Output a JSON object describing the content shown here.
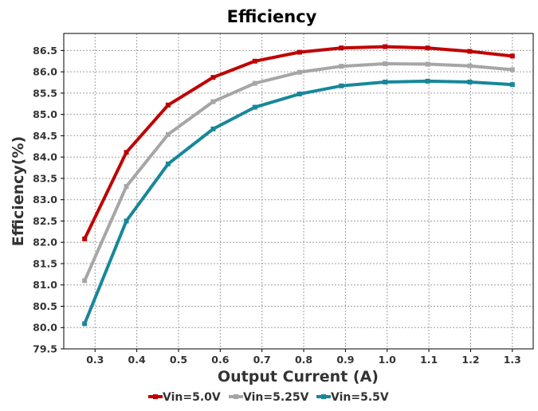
{
  "chart_data": {
    "type": "line",
    "title": "Efficiency",
    "xlabel": "Output Current (A)",
    "ylabel": "Efficiency(%)",
    "xlim": [
      0.225,
      1.35
    ],
    "ylim": [
      79.5,
      86.9
    ],
    "xticks": [
      0.3,
      0.4,
      0.5,
      0.6,
      0.7,
      0.8,
      0.9,
      1.0,
      1.1,
      1.2,
      1.3
    ],
    "xtick_labels": [
      "0.3",
      "0.4",
      "0.5",
      "0.6",
      "0.7",
      "0.8",
      "0.9",
      "1.0",
      "1.1",
      "1.2",
      "1.3"
    ],
    "yticks": [
      79.5,
      80.0,
      80.5,
      81.0,
      81.5,
      82.0,
      82.5,
      83.0,
      83.5,
      84.0,
      84.5,
      85.0,
      85.5,
      86.0,
      86.5
    ],
    "ytick_labels": [
      "79.5",
      "80.0",
      "80.5",
      "81.0",
      "81.5",
      "82.0",
      "82.5",
      "83.0",
      "83.5",
      "84.0",
      "84.5",
      "85.0",
      "85.5",
      "86.0",
      "86.5"
    ],
    "grid": true,
    "legend_position": "bottom",
    "x": [
      0.275,
      0.375,
      0.475,
      0.583,
      0.683,
      0.79,
      0.89,
      0.995,
      1.097,
      1.198,
      1.3
    ],
    "series": [
      {
        "name": "Vin=5.0V",
        "color": "#c00000",
        "marker": "square",
        "values": [
          82.08,
          84.11,
          85.22,
          85.87,
          86.25,
          86.46,
          86.56,
          86.59,
          86.56,
          86.48,
          86.37
        ]
      },
      {
        "name": "Vin=5.25V",
        "color": "#a6a6a6",
        "marker": "square",
        "values": [
          81.1,
          83.31,
          84.53,
          85.3,
          85.73,
          85.99,
          86.13,
          86.19,
          86.18,
          86.14,
          86.05
        ]
      },
      {
        "name": "Vin=5.5V",
        "color": "#17879a",
        "marker": "square",
        "values": [
          80.09,
          82.5,
          83.84,
          84.66,
          85.17,
          85.48,
          85.67,
          85.76,
          85.78,
          85.76,
          85.7
        ]
      }
    ]
  }
}
